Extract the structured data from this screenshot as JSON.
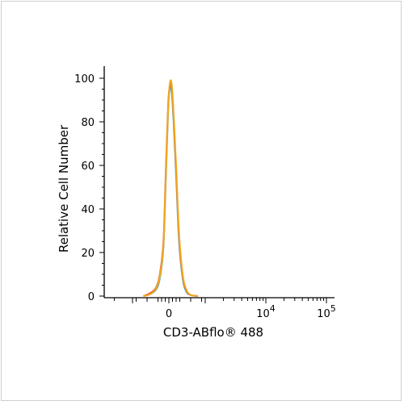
{
  "chart_data": {
    "type": "line",
    "title": "",
    "xlabel": "CD3-ABflo® 488",
    "ylabel": "Relative Cell Number",
    "x_scale": "biexponential",
    "ylim": [
      0,
      100
    ],
    "y_ticks": [
      {
        "value": 0,
        "label": "0"
      },
      {
        "value": 20,
        "label": "20"
      },
      {
        "value": 40,
        "label": "40"
      },
      {
        "value": 60,
        "label": "60"
      },
      {
        "value": 80,
        "label": "80"
      },
      {
        "value": 100,
        "label": "100"
      }
    ],
    "x_ticks": [
      {
        "value": 0,
        "label": "0",
        "exponent": ""
      },
      {
        "value": 10000,
        "label": "10",
        "exponent": "4"
      },
      {
        "value": 100000,
        "label": "10",
        "exponent": "5"
      }
    ],
    "grid": false,
    "legend": "none",
    "series": [
      {
        "color": "#3fb3d6",
        "x": [
          -700,
          -500,
          -350,
          -250,
          -150,
          -80,
          -20,
          30,
          80,
          130,
          200,
          280,
          380,
          480,
          600,
          800
        ],
        "y": [
          0,
          1,
          3,
          8,
          22,
          55,
          85,
          96,
          93,
          80,
          55,
          25,
          8,
          2,
          0.5,
          0
        ]
      },
      {
        "color": "#e8592b",
        "x": [
          -700,
          -500,
          -350,
          -250,
          -150,
          -80,
          -20,
          30,
          80,
          130,
          200,
          280,
          380,
          480,
          600,
          800
        ],
        "y": [
          0,
          1.5,
          4,
          10,
          25,
          60,
          88,
          97,
          95,
          82,
          57,
          27,
          9,
          2.5,
          0.5,
          0
        ]
      },
      {
        "color": "#f2a81d",
        "x": [
          -700,
          -500,
          -350,
          -250,
          -150,
          -80,
          -20,
          30,
          80,
          130,
          200,
          280,
          380,
          480,
          600,
          800
        ],
        "y": [
          0,
          1,
          3.5,
          9,
          23,
          57,
          86,
          98,
          97,
          84,
          60,
          29,
          10,
          3,
          0.5,
          0
        ]
      }
    ]
  }
}
